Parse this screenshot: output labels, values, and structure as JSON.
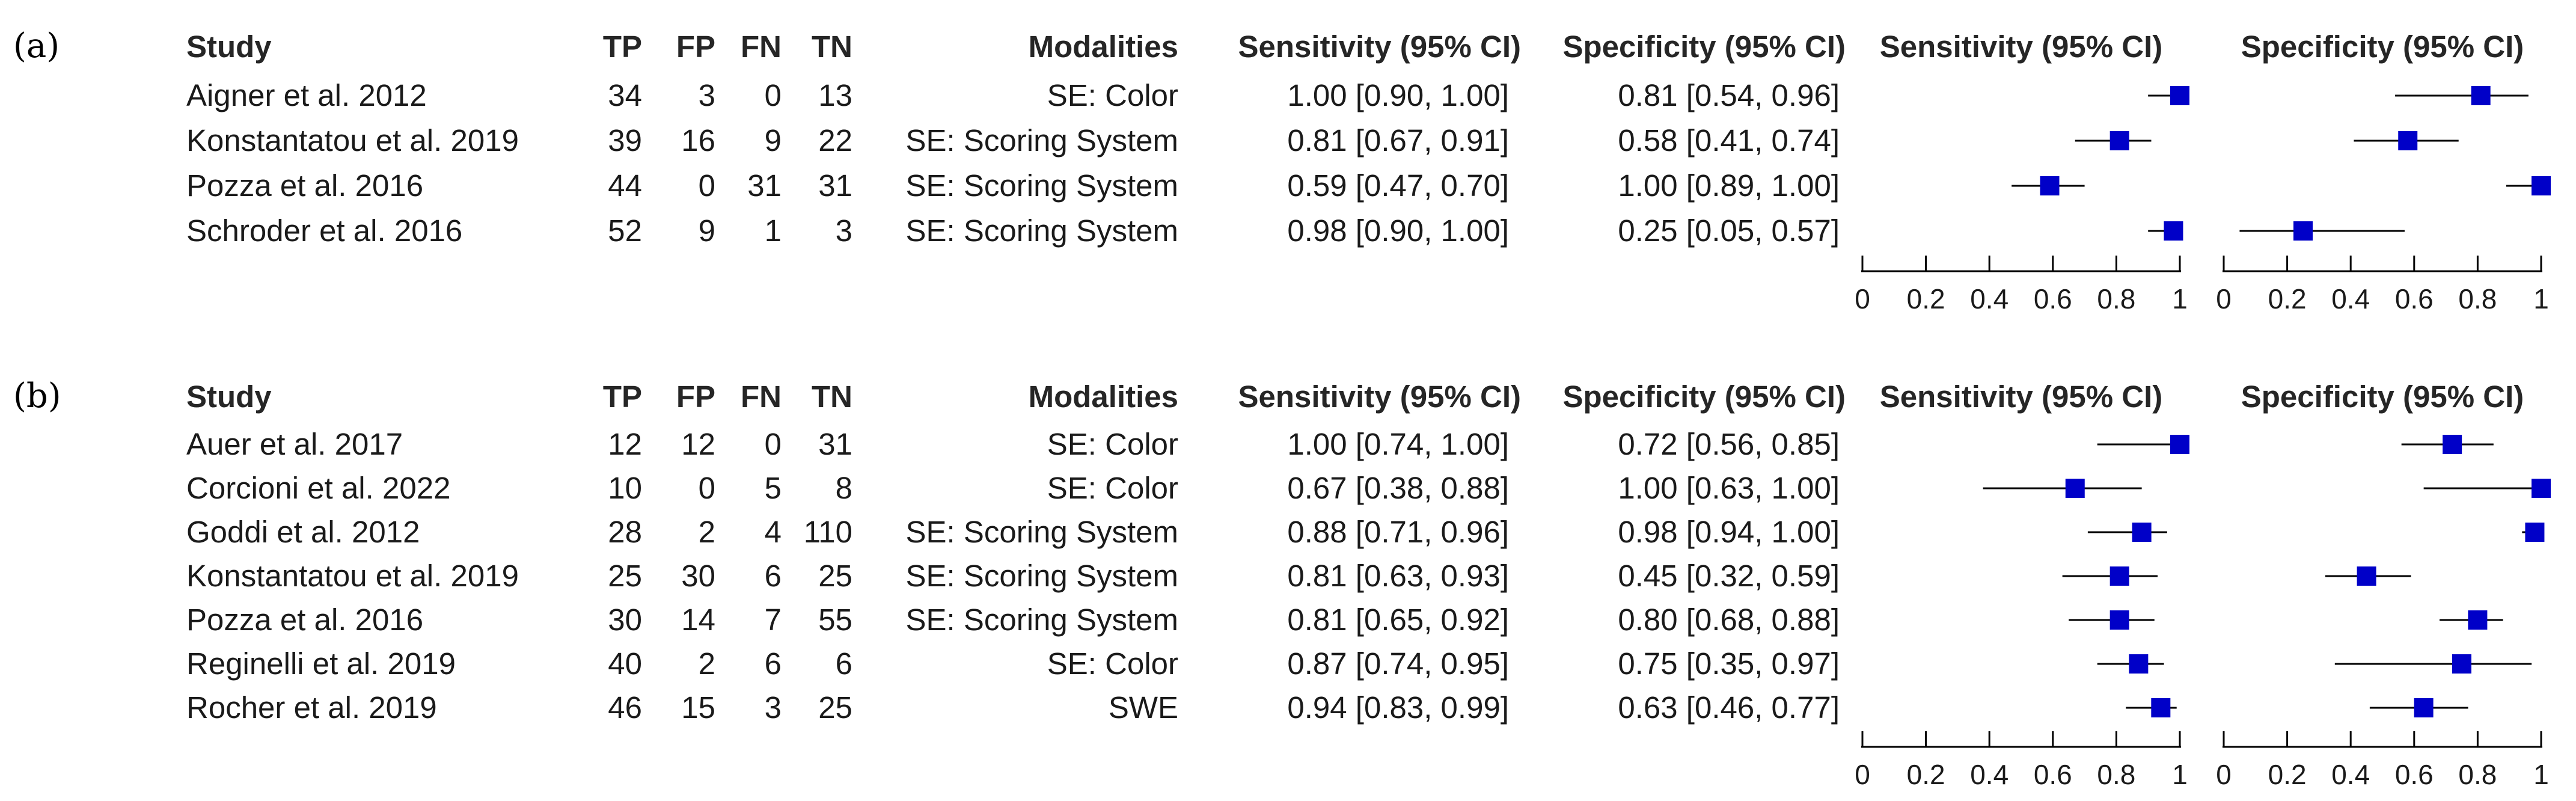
{
  "chart_data": [
    {
      "panel": "(a)",
      "type": "forest",
      "columns": [
        "Study",
        "TP",
        "FP",
        "FN",
        "TN",
        "Modalities",
        "Sensitivity (95% CI)",
        "Specificity (95% CI)"
      ],
      "plot_titles": [
        "Sensitivity (95% CI)",
        "Specificity (95% CI)"
      ],
      "xlim": [
        0,
        1
      ],
      "ticks": [
        "0",
        "0.2",
        "0.4",
        "0.6",
        "0.8",
        "1"
      ],
      "rows": [
        {
          "study": "Aigner et al. 2012",
          "tp": "34",
          "fp": "3",
          "fn": "0",
          "tn": "13",
          "modality": "SE: Color",
          "sens_text": "1.00 [0.90, 1.00]",
          "spec_text": "0.81 [0.54, 0.96]",
          "sens": [
            1.0,
            0.9,
            1.0
          ],
          "spec": [
            0.81,
            0.54,
            0.96
          ]
        },
        {
          "study": "Konstantatou et al. 2019",
          "tp": "39",
          "fp": "16",
          "fn": "9",
          "tn": "22",
          "modality": "SE: Scoring System",
          "sens_text": "0.81 [0.67, 0.91]",
          "spec_text": "0.58 [0.41, 0.74]",
          "sens": [
            0.81,
            0.67,
            0.91
          ],
          "spec": [
            0.58,
            0.41,
            0.74
          ]
        },
        {
          "study": "Pozza et al. 2016",
          "tp": "44",
          "fp": "0",
          "fn": "31",
          "tn": "31",
          "modality": "SE: Scoring System",
          "sens_text": "0.59 [0.47, 0.70]",
          "spec_text": "1.00 [0.89, 1.00]",
          "sens": [
            0.59,
            0.47,
            0.7
          ],
          "spec": [
            1.0,
            0.89,
            1.0
          ]
        },
        {
          "study": "Schroder et al. 2016",
          "tp": "52",
          "fp": "9",
          "fn": "1",
          "tn": "3",
          "modality": "SE: Scoring System",
          "sens_text": "0.98 [0.90, 1.00]",
          "spec_text": "0.25 [0.05, 0.57]",
          "sens": [
            0.98,
            0.9,
            1.0
          ],
          "spec": [
            0.25,
            0.05,
            0.57
          ]
        }
      ]
    },
    {
      "panel": "(b)",
      "type": "forest",
      "columns": [
        "Study",
        "TP",
        "FP",
        "FN",
        "TN",
        "Modalities",
        "Sensitivity (95% CI)",
        "Specificity (95% CI)"
      ],
      "plot_titles": [
        "Sensitivity (95% CI)",
        "Specificity (95% CI)"
      ],
      "xlim": [
        0,
        1
      ],
      "ticks": [
        "0",
        "0.2",
        "0.4",
        "0.6",
        "0.8",
        "1"
      ],
      "rows": [
        {
          "study": "Auer et al. 2017",
          "tp": "12",
          "fp": "12",
          "fn": "0",
          "tn": "31",
          "modality": "SE: Color",
          "sens_text": "1.00 [0.74, 1.00]",
          "spec_text": "0.72 [0.56, 0.85]",
          "sens": [
            1.0,
            0.74,
            1.0
          ],
          "spec": [
            0.72,
            0.56,
            0.85
          ]
        },
        {
          "study": "Corcioni et al. 2022",
          "tp": "10",
          "fp": "0",
          "fn": "5",
          "tn": "8",
          "modality": "SE: Color",
          "sens_text": "0.67 [0.38, 0.88]",
          "spec_text": "1.00 [0.63, 1.00]",
          "sens": [
            0.67,
            0.38,
            0.88
          ],
          "spec": [
            1.0,
            0.63,
            1.0
          ]
        },
        {
          "study": "Goddi et al. 2012",
          "tp": "28",
          "fp": "2",
          "fn": "4",
          "tn": "110",
          "modality": "SE: Scoring System",
          "sens_text": "0.88 [0.71, 0.96]",
          "spec_text": "0.98 [0.94, 1.00]",
          "sens": [
            0.88,
            0.71,
            0.96
          ],
          "spec": [
            0.98,
            0.94,
            1.0
          ]
        },
        {
          "study": "Konstantatou et al. 2019",
          "tp": "25",
          "fp": "30",
          "fn": "6",
          "tn": "25",
          "modality": "SE: Scoring System",
          "sens_text": "0.81 [0.63, 0.93]",
          "spec_text": "0.45 [0.32, 0.59]",
          "sens": [
            0.81,
            0.63,
            0.93
          ],
          "spec": [
            0.45,
            0.32,
            0.59
          ]
        },
        {
          "study": "Pozza et al. 2016",
          "tp": "30",
          "fp": "14",
          "fn": "7",
          "tn": "55",
          "modality": "SE: Scoring System",
          "sens_text": "0.81 [0.65, 0.92]",
          "spec_text": "0.80 [0.68, 0.88]",
          "sens": [
            0.81,
            0.65,
            0.92
          ],
          "spec": [
            0.8,
            0.68,
            0.88
          ]
        },
        {
          "study": "Reginelli et al. 2019",
          "tp": "40",
          "fp": "2",
          "fn": "6",
          "tn": "6",
          "modality": "SE: Color",
          "sens_text": "0.87 [0.74, 0.95]",
          "spec_text": "0.75 [0.35, 0.97]",
          "sens": [
            0.87,
            0.74,
            0.95
          ],
          "spec": [
            0.75,
            0.35,
            0.97
          ]
        },
        {
          "study": "Rocher et al. 2019",
          "tp": "46",
          "fp": "15",
          "fn": "3",
          "tn": "25",
          "modality": "SWE",
          "sens_text": "0.94 [0.83, 0.99]",
          "spec_text": "0.63 [0.46, 0.77]",
          "sens": [
            0.94,
            0.83,
            0.99
          ],
          "spec": [
            0.63,
            0.46,
            0.77
          ]
        }
      ]
    }
  ],
  "colors": {
    "marker": "#0000c8",
    "line": "#000000",
    "text": "#1a1a1a"
  }
}
